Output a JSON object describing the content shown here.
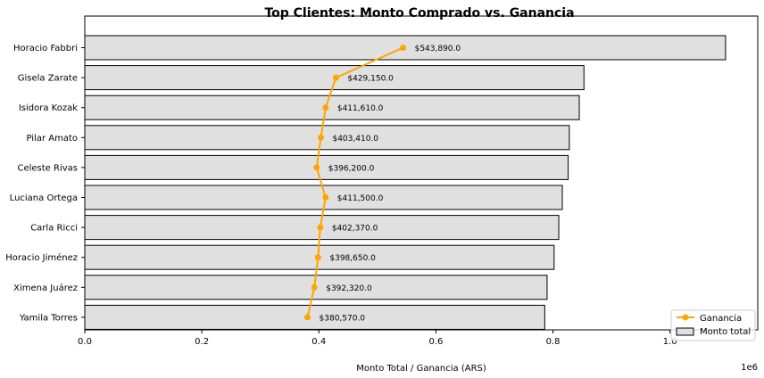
{
  "chart_data": {
    "type": "bar",
    "orientation": "horizontal",
    "title": "Top Clientes: Monto Comprado vs. Ganancia",
    "xlabel": "Monto Total / Ganancia (ARS)",
    "ylabel": "",
    "x_offset_label": "1e6",
    "xlim": [
      0,
      1150000
    ],
    "x_ticks": [
      0,
      200000,
      400000,
      600000,
      800000,
      1000000
    ],
    "x_tick_labels": [
      "0.0",
      "0.2",
      "0.4",
      "0.6",
      "0.8",
      "1.0"
    ],
    "categories": [
      "Horacio Fabbri",
      "Gisela Zarate",
      "Isidora Kozak",
      "Pilar Amato",
      "Celeste Rivas",
      "Luciana Ortega",
      "Carla Ricci",
      "Horacio Jiménez",
      "Ximena Juárez",
      "Yamila Torres"
    ],
    "series": [
      {
        "name": "Monto total",
        "kind": "bar",
        "color": "#e0e0e0",
        "edge_color": "#000000",
        "values": [
          1095000,
          853000,
          845000,
          828000,
          826000,
          816000,
          810000,
          802000,
          790000,
          786000
        ]
      },
      {
        "name": "Ganancia",
        "kind": "line",
        "color": "#ffa500",
        "marker": "circle",
        "values": [
          543890,
          429150,
          411610,
          403410,
          396200,
          411500,
          402370,
          398650,
          392320,
          380570
        ],
        "labels": [
          "$543,890.0",
          "$429,150.0",
          "$411,610.0",
          "$403,410.0",
          "$396,200.0",
          "$411,500.0",
          "$402,370.0",
          "$398,650.0",
          "$392,320.0",
          "$380,570.0"
        ]
      }
    ],
    "legend": {
      "placement": "lower-right",
      "entries": [
        "Ganancia",
        "Monto total"
      ]
    },
    "grid": false
  }
}
